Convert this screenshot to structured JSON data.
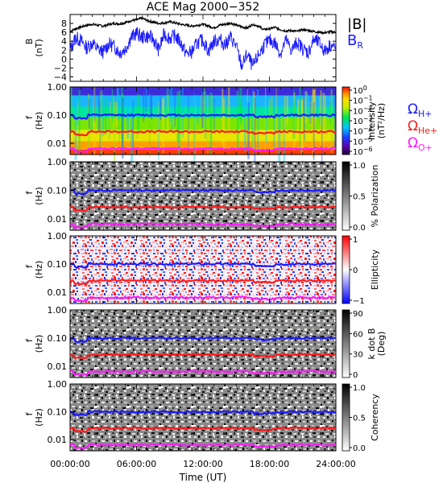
{
  "title": "ACE Mag 2000−352",
  "x_axis": {
    "label": "Time (UT)",
    "range": [
      "00:00:00",
      "24:00:00"
    ],
    "ticks": [
      "00:00:00",
      "06:00:00",
      "12:00:00",
      "18:00:00",
      "24:00:00"
    ]
  },
  "colors": {
    "B_total": "#000000",
    "B_R": "#1a1aff",
    "H_plus": "#1a1aff",
    "He_plus": "#ff1a1a",
    "O_plus": "#ff1aff"
  },
  "legend_B": {
    "total": "|B|",
    "radial": "B",
    "radial_sub": "R"
  },
  "legend_cyclotron": [
    {
      "symbol": "Ω",
      "sub": "H+",
      "color": "#1a1aff"
    },
    {
      "symbol": "Ω",
      "sub": "He+",
      "color": "#ff1a1a"
    },
    {
      "symbol": "Ω",
      "sub": "O+",
      "color": "#ff1aff"
    }
  ],
  "freq_axis": {
    "label": "f",
    "unit": "(Hz)",
    "ticks": [
      "1.00",
      "0.10",
      "0.01"
    ],
    "scale": "log",
    "range": [
      0.004,
      1.0
    ]
  },
  "chart_data": [
    {
      "type": "line",
      "ylabel": "B",
      "yunit": "(nT)",
      "ylim": [
        -5,
        10
      ],
      "ytick_labels": [
        "8",
        "6",
        "4",
        "2",
        "0",
        "−2",
        "−4"
      ],
      "x_hours": [
        0,
        0.5,
        1,
        1.5,
        2,
        2.5,
        3,
        3.5,
        4,
        4.5,
        5,
        5.5,
        6,
        6.5,
        7,
        7.5,
        8,
        8.5,
        9,
        9.5,
        10,
        10.5,
        11,
        11.5,
        12,
        12.5,
        13,
        13.5,
        14,
        14.5,
        15,
        15.5,
        16,
        16.5,
        17,
        17.5,
        18,
        18.5,
        19,
        19.5,
        20,
        20.5,
        21,
        21.5,
        22,
        22.5,
        23,
        23.5,
        24
      ],
      "series": [
        {
          "name": "|B|",
          "values": [
            6.2,
            6.8,
            7.2,
            7.6,
            7.8,
            7.6,
            7.4,
            7.8,
            8.0,
            7.9,
            8.2,
            8.6,
            8.8,
            9.2,
            8.6,
            8.3,
            8.0,
            8.1,
            8.4,
            8.1,
            7.8,
            7.6,
            7.4,
            7.6,
            7.8,
            7.4,
            7.0,
            7.6,
            7.8,
            8.1,
            7.6,
            7.2,
            7.0,
            7.8,
            7.4,
            6.6,
            6.8,
            7.1,
            6.6,
            6.3,
            6.4,
            6.2,
            6.6,
            6.4,
            6.2,
            6.0,
            5.9,
            6.1,
            6.0
          ]
        },
        {
          "name": "B_R",
          "values": [
            2.0,
            4.8,
            4.1,
            2.5,
            3.6,
            2.2,
            1.6,
            3.4,
            2.8,
            1.4,
            2.3,
            4.8,
            5.8,
            4.9,
            5.1,
            4.6,
            2.0,
            5.6,
            4.7,
            5.2,
            3.6,
            1.2,
            1.6,
            3.7,
            4.2,
            1.8,
            4.0,
            4.4,
            3.2,
            4.9,
            2.8,
            -1.6,
            1.1,
            -1.8,
            0.8,
            3.0,
            4.2,
            3.6,
            1.2,
            4.3,
            1.9,
            3.8,
            2.4,
            1.4,
            4.3,
            3.6,
            1.7,
            3.2,
            2.3
          ]
        }
      ]
    },
    {
      "type": "heatmap",
      "ylabel": "Intensity",
      "yunit": "(nT²/Hz)",
      "colorbar_ticks": [
        {
          "base": "10",
          "exp": "0"
        },
        {
          "base": "10",
          "exp": "−1"
        },
        {
          "base": "10",
          "exp": "−2"
        },
        {
          "base": "10",
          "exp": "−3"
        },
        {
          "base": "10",
          "exp": "−4"
        },
        {
          "base": "10",
          "exp": "−5"
        },
        {
          "base": "10",
          "exp": "−6"
        }
      ],
      "colorbar_range": [
        1e-06,
        1
      ],
      "colormap": "rainbow"
    },
    {
      "type": "heatmap",
      "ylabel": "% Polarization",
      "colorbar_ticks": [
        "1.0",
        "0.5",
        "0.0"
      ],
      "colorbar_range": [
        0,
        1
      ],
      "colormap": "grayscale"
    },
    {
      "type": "heatmap",
      "ylabel": "Ellipticity",
      "colorbar_ticks": [
        "1",
        "0",
        "−1"
      ],
      "colorbar_range": [
        -1,
        1
      ],
      "colormap": "blue-white-red"
    },
    {
      "type": "heatmap",
      "ylabel": "k dot B",
      "yunit": "(Deg)",
      "colorbar_ticks": [
        "90",
        "60",
        "30",
        "0"
      ],
      "colorbar_range": [
        0,
        90
      ],
      "colormap": "grayscale"
    },
    {
      "type": "heatmap",
      "ylabel": "Coherency",
      "colorbar_ticks": [
        "1.0",
        "0.5",
        "0.0"
      ],
      "colorbar_range": [
        0,
        1
      ],
      "colormap": "grayscale"
    }
  ]
}
